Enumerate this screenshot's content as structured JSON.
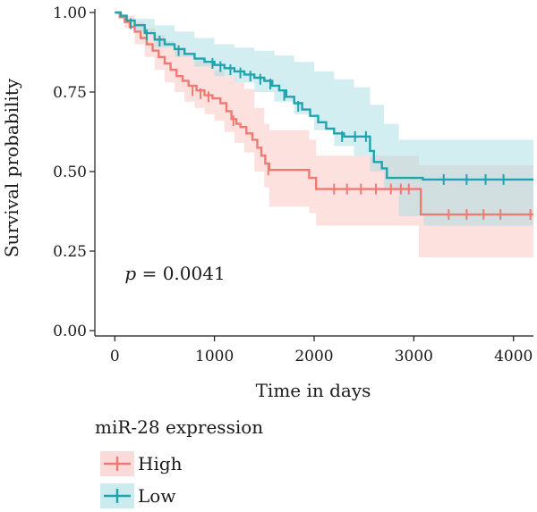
{
  "chart_data": {
    "type": "line",
    "subtype": "kaplan-meier",
    "title": "",
    "xlabel": "Time in days",
    "ylabel": "Survival probability",
    "xlim": [
      -200,
      4200
    ],
    "ylim": [
      0,
      1
    ],
    "xticks": [
      0,
      1000,
      2000,
      3000,
      4000
    ],
    "xtick_labels": [
      "0",
      "1000",
      "2000",
      "3000",
      "4000"
    ],
    "yticks": [
      0,
      0.25,
      0.5,
      0.75,
      1
    ],
    "ytick_labels": [
      "0.00",
      "0.25",
      "0.50",
      "0.75",
      "1.00"
    ],
    "grid": false,
    "annotation": {
      "p_label": "p",
      "p_value": " = 0.0041",
      "x": 100,
      "y": 0.18
    },
    "legend": {
      "title": "miR-28 expression",
      "placement": "bottom-left"
    },
    "series": [
      {
        "name": "High",
        "color": "#F07A72",
        "band_color": "#F9C3BF",
        "steps": [
          [
            0,
            1.0
          ],
          [
            50,
            0.985
          ],
          [
            100,
            0.97
          ],
          [
            150,
            0.955
          ],
          [
            200,
            0.94
          ],
          [
            260,
            0.92
          ],
          [
            320,
            0.9
          ],
          [
            380,
            0.88
          ],
          [
            440,
            0.86
          ],
          [
            500,
            0.84
          ],
          [
            560,
            0.82
          ],
          [
            620,
            0.8
          ],
          [
            680,
            0.785
          ],
          [
            740,
            0.77
          ],
          [
            820,
            0.755
          ],
          [
            900,
            0.74
          ],
          [
            980,
            0.73
          ],
          [
            1060,
            0.715
          ],
          [
            1120,
            0.69
          ],
          [
            1170,
            0.665
          ],
          [
            1220,
            0.65
          ],
          [
            1260,
            0.64
          ],
          [
            1320,
            0.62
          ],
          [
            1380,
            0.6
          ],
          [
            1430,
            0.575
          ],
          [
            1470,
            0.55
          ],
          [
            1510,
            0.525
          ],
          [
            1550,
            0.505
          ],
          [
            1950,
            0.48
          ],
          [
            2020,
            0.445
          ],
          [
            3070,
            0.365
          ],
          [
            4200,
            0.365
          ]
        ],
        "lower": [
          [
            0,
            1.0
          ],
          [
            100,
            0.95
          ],
          [
            200,
            0.9
          ],
          [
            300,
            0.86
          ],
          [
            400,
            0.82
          ],
          [
            500,
            0.78
          ],
          [
            600,
            0.75
          ],
          [
            700,
            0.72
          ],
          [
            800,
            0.7
          ],
          [
            900,
            0.68
          ],
          [
            1000,
            0.66
          ],
          [
            1100,
            0.625
          ],
          [
            1200,
            0.59
          ],
          [
            1300,
            0.56
          ],
          [
            1400,
            0.5
          ],
          [
            1500,
            0.45
          ],
          [
            1550,
            0.39
          ],
          [
            1950,
            0.37
          ],
          [
            2020,
            0.33
          ],
          [
            2850,
            0.33
          ],
          [
            3050,
            0.23
          ],
          [
            4200,
            0.23
          ]
        ],
        "upper": [
          [
            0,
            1.0
          ],
          [
            100,
            0.99
          ],
          [
            200,
            0.97
          ],
          [
            300,
            0.95
          ],
          [
            400,
            0.93
          ],
          [
            500,
            0.91
          ],
          [
            600,
            0.89
          ],
          [
            700,
            0.87
          ],
          [
            800,
            0.85
          ],
          [
            900,
            0.84
          ],
          [
            1000,
            0.82
          ],
          [
            1100,
            0.8
          ],
          [
            1200,
            0.78
          ],
          [
            1300,
            0.76
          ],
          [
            1400,
            0.7
          ],
          [
            1500,
            0.65
          ],
          [
            1550,
            0.63
          ],
          [
            1950,
            0.6
          ],
          [
            2020,
            0.55
          ],
          [
            3050,
            0.52
          ],
          [
            4200,
            0.52
          ]
        ],
        "censor": [
          [
            780,
            0.755
          ],
          [
            860,
            0.745
          ],
          [
            940,
            0.735
          ],
          [
            1190,
            0.66
          ],
          [
            1540,
            0.505
          ],
          [
            2200,
            0.445
          ],
          [
            2330,
            0.445
          ],
          [
            2470,
            0.445
          ],
          [
            2620,
            0.445
          ],
          [
            2770,
            0.445
          ],
          [
            2870,
            0.445
          ],
          [
            2950,
            0.445
          ],
          [
            3350,
            0.365
          ],
          [
            3530,
            0.365
          ],
          [
            3700,
            0.365
          ],
          [
            3870,
            0.365
          ],
          [
            4170,
            0.365
          ]
        ]
      },
      {
        "name": "Low",
        "color": "#1FA3AE",
        "band_color": "#A8DDE3",
        "steps": [
          [
            0,
            1.0
          ],
          [
            60,
            0.99
          ],
          [
            120,
            0.975
          ],
          [
            200,
            0.96
          ],
          [
            300,
            0.935
          ],
          [
            400,
            0.915
          ],
          [
            500,
            0.9
          ],
          [
            600,
            0.885
          ],
          [
            700,
            0.87
          ],
          [
            800,
            0.855
          ],
          [
            900,
            0.845
          ],
          [
            1000,
            0.835
          ],
          [
            1100,
            0.825
          ],
          [
            1200,
            0.815
          ],
          [
            1300,
            0.805
          ],
          [
            1400,
            0.795
          ],
          [
            1500,
            0.785
          ],
          [
            1580,
            0.77
          ],
          [
            1650,
            0.755
          ],
          [
            1720,
            0.735
          ],
          [
            1800,
            0.715
          ],
          [
            1880,
            0.695
          ],
          [
            1960,
            0.675
          ],
          [
            2040,
            0.655
          ],
          [
            2120,
            0.635
          ],
          [
            2200,
            0.62
          ],
          [
            2300,
            0.61
          ],
          [
            2560,
            0.565
          ],
          [
            2600,
            0.53
          ],
          [
            2680,
            0.51
          ],
          [
            2730,
            0.48
          ],
          [
            2850,
            0.48
          ],
          [
            3090,
            0.475
          ],
          [
            4200,
            0.475
          ]
        ],
        "lower": [
          [
            0,
            1.0
          ],
          [
            200,
            0.94
          ],
          [
            400,
            0.89
          ],
          [
            600,
            0.86
          ],
          [
            800,
            0.83
          ],
          [
            1000,
            0.8
          ],
          [
            1200,
            0.78
          ],
          [
            1400,
            0.75
          ],
          [
            1600,
            0.72
          ],
          [
            1800,
            0.68
          ],
          [
            2000,
            0.63
          ],
          [
            2200,
            0.58
          ],
          [
            2400,
            0.55
          ],
          [
            2560,
            0.5
          ],
          [
            2700,
            0.44
          ],
          [
            2850,
            0.36
          ],
          [
            3100,
            0.33
          ],
          [
            4200,
            0.33
          ]
        ],
        "upper": [
          [
            0,
            1.0
          ],
          [
            200,
            0.98
          ],
          [
            400,
            0.96
          ],
          [
            600,
            0.94
          ],
          [
            800,
            0.92
          ],
          [
            1000,
            0.9
          ],
          [
            1200,
            0.89
          ],
          [
            1400,
            0.88
          ],
          [
            1600,
            0.865
          ],
          [
            1800,
            0.845
          ],
          [
            2000,
            0.815
          ],
          [
            2200,
            0.79
          ],
          [
            2400,
            0.765
          ],
          [
            2560,
            0.71
          ],
          [
            2700,
            0.65
          ],
          [
            2850,
            0.6
          ],
          [
            3100,
            0.6
          ],
          [
            4200,
            0.6
          ]
        ],
        "censor": [
          [
            160,
            0.965
          ],
          [
            320,
            0.93
          ],
          [
            450,
            0.91
          ],
          [
            640,
            0.88
          ],
          [
            980,
            0.84
          ],
          [
            1060,
            0.83
          ],
          [
            1160,
            0.82
          ],
          [
            1260,
            0.81
          ],
          [
            1360,
            0.8
          ],
          [
            1460,
            0.79
          ],
          [
            1560,
            0.775
          ],
          [
            1700,
            0.74
          ],
          [
            1840,
            0.705
          ],
          [
            2280,
            0.61
          ],
          [
            2410,
            0.61
          ],
          [
            2520,
            0.61
          ],
          [
            3300,
            0.475
          ],
          [
            3530,
            0.475
          ],
          [
            3720,
            0.475
          ],
          [
            3900,
            0.475
          ]
        ]
      }
    ]
  }
}
